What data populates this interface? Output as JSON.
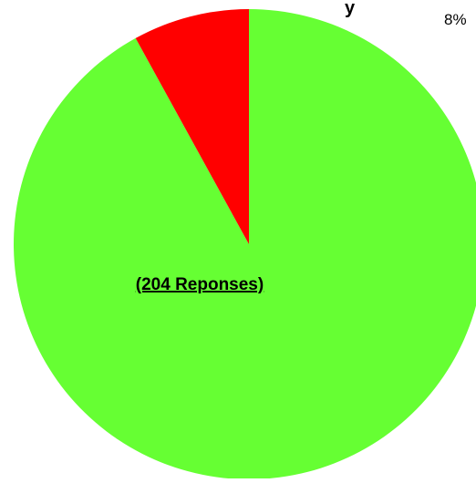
{
  "chart_data": {
    "type": "pie",
    "title": "y",
    "slices": [
      {
        "label": "",
        "value": 92,
        "color": "#66ff33"
      },
      {
        "label": "8%",
        "value": 8,
        "color": "#ff0000"
      }
    ],
    "annotation": "(204 Reponses)"
  }
}
